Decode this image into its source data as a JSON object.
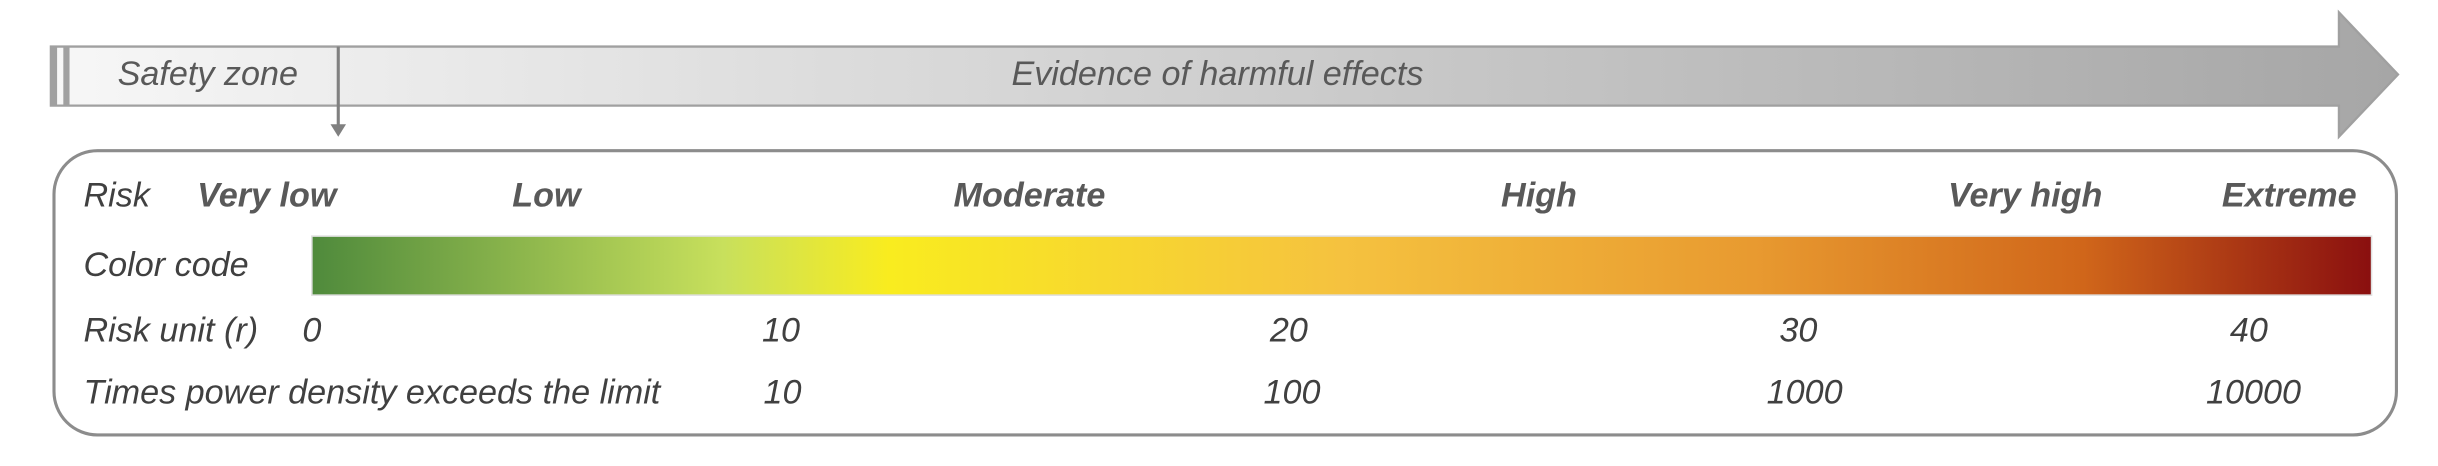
{
  "arrow": {
    "safety_zone": "Safety zone",
    "evidence": "Evidence of harmful effects"
  },
  "rows": {
    "risk": {
      "label": "Risk",
      "levels": [
        "Very low",
        "Low",
        "Moderate",
        "High",
        "Very high",
        "Extreme"
      ]
    },
    "color_code": {
      "label": "Color code"
    },
    "risk_unit": {
      "label": "Risk unit (r)",
      "values": [
        0,
        10,
        20,
        30,
        40
      ]
    },
    "times_exceeds": {
      "label": "Times power density exceeds the limit",
      "values": [
        10,
        100,
        1000,
        10000
      ]
    }
  }
}
